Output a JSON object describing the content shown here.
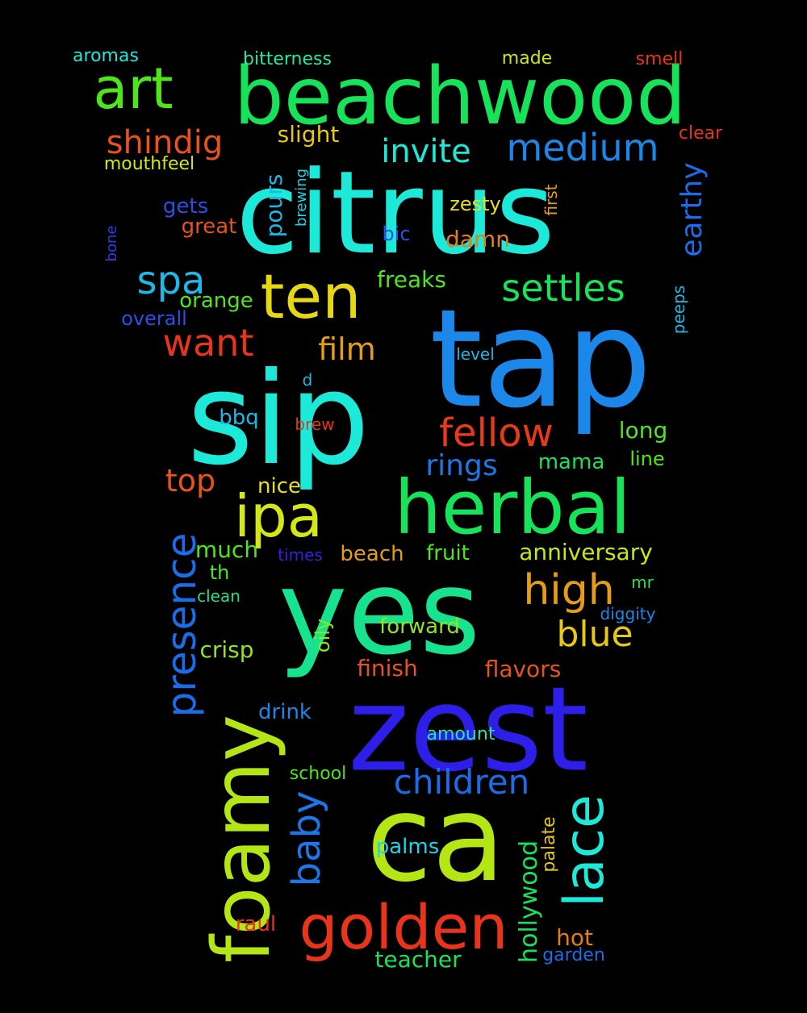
{
  "words": [
    {
      "text": "citrus",
      "color": "#1de9d9"
    },
    {
      "text": "tap",
      "color": "#1b87e8"
    },
    {
      "text": "sip",
      "color": "#1de9d9"
    },
    {
      "text": "yes",
      "color": "#17e38f"
    },
    {
      "text": "zest",
      "color": "#2d1ee8"
    },
    {
      "text": "ca",
      "color": "#b3e614"
    },
    {
      "text": "beachwood",
      "color": "#17e35a"
    },
    {
      "text": "herbal",
      "color": "#17e35a"
    },
    {
      "text": "foamy",
      "color": "#b3e614"
    },
    {
      "text": "golden",
      "color": "#e8341b"
    },
    {
      "text": "ten",
      "color": "#e6d714"
    },
    {
      "text": "ipa",
      "color": "#d4e614"
    },
    {
      "text": "art",
      "color": "#4ee619"
    },
    {
      "text": "lace",
      "color": "#1de9d9"
    },
    {
      "text": "presence",
      "color": "#1b6ce8"
    },
    {
      "text": "fellow",
      "color": "#e83a1b"
    },
    {
      "text": "children",
      "color": "#1b6ce8"
    },
    {
      "text": "baby",
      "color": "#1b77e8"
    },
    {
      "text": "high",
      "color": "#e69d14"
    },
    {
      "text": "medium",
      "color": "#1b87e8"
    },
    {
      "text": "settles",
      "color": "#17e35a"
    },
    {
      "text": "want",
      "color": "#e8341b"
    },
    {
      "text": "spa",
      "color": "#1bb8e8"
    },
    {
      "text": "shindig",
      "color": "#e8521b"
    },
    {
      "text": "blue",
      "color": "#e6c814"
    },
    {
      "text": "invite",
      "color": "#1de9d9"
    },
    {
      "text": "film",
      "color": "#e69d14"
    },
    {
      "text": "rings",
      "color": "#1b77e8"
    },
    {
      "text": "top",
      "color": "#e8521b"
    },
    {
      "text": "earthy",
      "color": "#1b6ce8"
    },
    {
      "text": "freaks",
      "color": "#4ee619"
    },
    {
      "text": "flavors",
      "color": "#e8521b"
    },
    {
      "text": "anniversary",
      "color": "#c8e614"
    },
    {
      "text": "hollywood",
      "color": "#17e35a"
    },
    {
      "text": "teacher",
      "color": "#17e35a"
    },
    {
      "text": "finish",
      "color": "#e8521b"
    },
    {
      "text": "forward",
      "color": "#8fe619"
    },
    {
      "text": "damn",
      "color": "#e67e14"
    },
    {
      "text": "pours",
      "color": "#1bb8e8"
    },
    {
      "text": "slight",
      "color": "#e6c814"
    },
    {
      "text": "orange",
      "color": "#4ee619"
    },
    {
      "text": "palms",
      "color": "#1bd4e8"
    },
    {
      "text": "hot",
      "color": "#e67e14"
    },
    {
      "text": "raul",
      "color": "#e8341b"
    },
    {
      "text": "long",
      "color": "#4ee619"
    },
    {
      "text": "mama",
      "color": "#17e35a"
    },
    {
      "text": "fruit",
      "color": "#4ee619"
    },
    {
      "text": "beach",
      "color": "#e69d14"
    },
    {
      "text": "much",
      "color": "#4ee619"
    },
    {
      "text": "crisp",
      "color": "#8fe619"
    },
    {
      "text": "drink",
      "color": "#1b87e8"
    },
    {
      "text": "oily",
      "color": "#8fe619"
    },
    {
      "text": "bbq",
      "color": "#1bb8e8"
    },
    {
      "text": "nice",
      "color": "#e6e014"
    },
    {
      "text": "line",
      "color": "#4ee619"
    },
    {
      "text": "great",
      "color": "#e8521b"
    },
    {
      "text": "gets",
      "color": "#2d4ee8"
    },
    {
      "text": "zesty",
      "color": "#e6e014"
    },
    {
      "text": "bic",
      "color": "#2d4ee8"
    },
    {
      "text": "palate",
      "color": "#e6c814"
    },
    {
      "text": "overall",
      "color": "#2d4ee8"
    },
    {
      "text": "th",
      "color": "#4ee619"
    },
    {
      "text": "bitterness",
      "color": "#1de9a9"
    },
    {
      "text": "aromas",
      "color": "#1de9d9"
    },
    {
      "text": "made",
      "color": "#c8e614"
    },
    {
      "text": "smell",
      "color": "#e8341b"
    },
    {
      "text": "clear",
      "color": "#e8341b"
    },
    {
      "text": "mouthfeel",
      "color": "#d4e614"
    },
    {
      "text": "school",
      "color": "#4ee619"
    },
    {
      "text": "amount",
      "color": "#1de9a9"
    },
    {
      "text": "garden",
      "color": "#1b6ce8"
    },
    {
      "text": "times",
      "color": "#3a1ee8"
    },
    {
      "text": "clean",
      "color": "#17e38f"
    },
    {
      "text": "diggity",
      "color": "#1b87e8"
    },
    {
      "text": "level",
      "color": "#1bb8e8"
    },
    {
      "text": "peeps",
      "color": "#1bb8e8"
    },
    {
      "text": "mr",
      "color": "#17e35a"
    },
    {
      "text": "brew",
      "color": "#e8341b"
    },
    {
      "text": "d",
      "color": "#1bb8e8"
    },
    {
      "text": "first",
      "color": "#e69d14"
    },
    {
      "text": "brewing",
      "color": "#1bd4e8"
    },
    {
      "text": "bone",
      "color": "#2d3ee8"
    }
  ]
}
